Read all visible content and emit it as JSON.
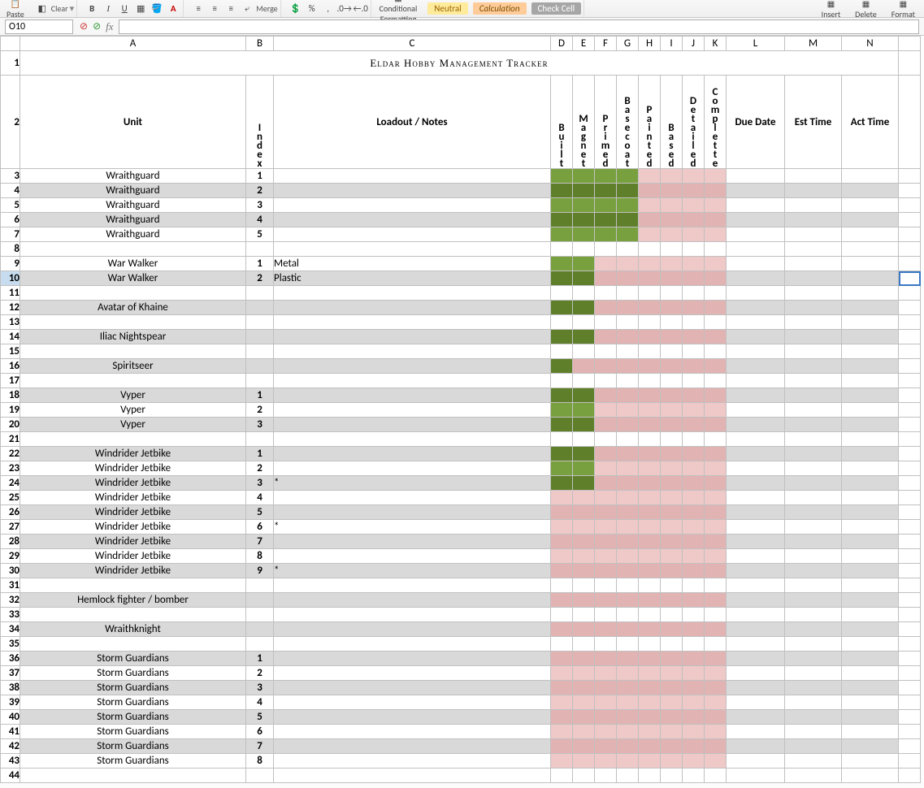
{
  "ribbon": {
    "paste": "Paste",
    "clear": "Clear",
    "merge": "Merge",
    "cond_fmt_top": "Conditional",
    "cond_fmt_bot": "Formatting",
    "style_neutral": "Neutral",
    "style_calc": "Calculation",
    "style_check": "Check Cell",
    "insert": "Insert",
    "delete": "Delete",
    "format": "Format"
  },
  "namebox": "O10",
  "columns": [
    "A",
    "B",
    "C",
    "D",
    "E",
    "F",
    "G",
    "H",
    "I",
    "J",
    "K",
    "L",
    "M",
    "N"
  ],
  "title": "Eldar Hobby Management Tracker",
  "headers": {
    "unit": "Unit",
    "index": "Index",
    "loadout": "Loadout / Notes",
    "status": [
      "Built",
      "Magnet",
      "Primed",
      "Basecoat",
      "Painted",
      "Based",
      "Detailed",
      "Complette"
    ],
    "due": "Due Date",
    "est": "Est Time",
    "act": "Act Time"
  },
  "colors": {
    "title_bg": "#d2dab5",
    "header_bg": "#b8d6df",
    "grey": "#d9d9d9",
    "green_dark": "#5f7f2a",
    "green_light": "#78a03e",
    "pink_dark": "#e2b3b3",
    "pink_light": "#efc8c8"
  },
  "rows": [
    {
      "r": 3,
      "unit": "Wraithguard",
      "idx": "1",
      "note": "",
      "status": [
        1,
        1,
        1,
        1,
        0,
        0,
        0,
        0
      ],
      "shade": false
    },
    {
      "r": 4,
      "unit": "Wraithguard",
      "idx": "2",
      "note": "",
      "status": [
        1,
        1,
        1,
        1,
        0,
        0,
        0,
        0
      ],
      "shade": true
    },
    {
      "r": 5,
      "unit": "Wraithguard",
      "idx": "3",
      "note": "",
      "status": [
        1,
        1,
        1,
        1,
        0,
        0,
        0,
        0
      ],
      "shade": false
    },
    {
      "r": 6,
      "unit": "Wraithguard",
      "idx": "4",
      "note": "",
      "status": [
        1,
        1,
        1,
        1,
        0,
        0,
        0,
        0
      ],
      "shade": true
    },
    {
      "r": 7,
      "unit": "Wraithguard",
      "idx": "5",
      "note": "",
      "status": [
        1,
        1,
        1,
        1,
        0,
        0,
        0,
        0
      ],
      "shade": false
    },
    {
      "r": 8,
      "blank": true
    },
    {
      "r": 9,
      "unit": "War Walker",
      "idx": "1",
      "note": "Metal",
      "status": [
        1,
        1,
        0,
        0,
        0,
        0,
        0,
        0
      ],
      "shade": false
    },
    {
      "r": 10,
      "unit": "War Walker",
      "idx": "2",
      "note": "Plastic",
      "status": [
        1,
        1,
        0,
        0,
        0,
        0,
        0,
        0
      ],
      "shade": true,
      "sel": true
    },
    {
      "r": 11,
      "blank": true
    },
    {
      "r": 12,
      "unit": "Avatar of Khaine",
      "idx": "",
      "note": "",
      "status": [
        1,
        1,
        0,
        0,
        0,
        0,
        0,
        0
      ],
      "shade": true
    },
    {
      "r": 13,
      "blank": true
    },
    {
      "r": 14,
      "unit": "Iliac Nightspear",
      "idx": "",
      "note": "",
      "status": [
        1,
        1,
        0,
        0,
        0,
        0,
        0,
        0
      ],
      "shade": true
    },
    {
      "r": 15,
      "blank": true
    },
    {
      "r": 16,
      "unit": "Spiritseer",
      "idx": "",
      "note": "",
      "status": [
        1,
        0,
        0,
        0,
        0,
        0,
        0,
        0
      ],
      "shade": true
    },
    {
      "r": 17,
      "blank": true
    },
    {
      "r": 18,
      "unit": "Vyper",
      "idx": "1",
      "note": "",
      "status": [
        1,
        1,
        0,
        0,
        0,
        0,
        0,
        0
      ],
      "shade": true
    },
    {
      "r": 19,
      "unit": "Vyper",
      "idx": "2",
      "note": "",
      "status": [
        1,
        1,
        0,
        0,
        0,
        0,
        0,
        0
      ],
      "shade": false
    },
    {
      "r": 20,
      "unit": "Vyper",
      "idx": "3",
      "note": "",
      "status": [
        1,
        1,
        0,
        0,
        0,
        0,
        0,
        0
      ],
      "shade": true
    },
    {
      "r": 21,
      "blank": true
    },
    {
      "r": 22,
      "unit": "Windrider Jetbike",
      "idx": "1",
      "note": "",
      "status": [
        1,
        1,
        0,
        0,
        0,
        0,
        0,
        0
      ],
      "shade": true
    },
    {
      "r": 23,
      "unit": "Windrider Jetbike",
      "idx": "2",
      "note": "",
      "status": [
        1,
        1,
        0,
        0,
        0,
        0,
        0,
        0
      ],
      "shade": false
    },
    {
      "r": 24,
      "unit": "Windrider Jetbike",
      "idx": "3",
      "note": "*",
      "status": [
        1,
        1,
        0,
        0,
        0,
        0,
        0,
        0
      ],
      "shade": true
    },
    {
      "r": 25,
      "unit": "Windrider Jetbike",
      "idx": "4",
      "note": "",
      "status": [
        0,
        0,
        0,
        0,
        0,
        0,
        0,
        0
      ],
      "shade": false
    },
    {
      "r": 26,
      "unit": "Windrider Jetbike",
      "idx": "5",
      "note": "",
      "status": [
        0,
        0,
        0,
        0,
        0,
        0,
        0,
        0
      ],
      "shade": true
    },
    {
      "r": 27,
      "unit": "Windrider Jetbike",
      "idx": "6",
      "note": "*",
      "status": [
        0,
        0,
        0,
        0,
        0,
        0,
        0,
        0
      ],
      "shade": false
    },
    {
      "r": 28,
      "unit": "Windrider Jetbike",
      "idx": "7",
      "note": "",
      "status": [
        0,
        0,
        0,
        0,
        0,
        0,
        0,
        0
      ],
      "shade": true
    },
    {
      "r": 29,
      "unit": "Windrider Jetbike",
      "idx": "8",
      "note": "",
      "status": [
        0,
        0,
        0,
        0,
        0,
        0,
        0,
        0
      ],
      "shade": false
    },
    {
      "r": 30,
      "unit": "Windrider Jetbike",
      "idx": "9",
      "note": "*",
      "status": [
        0,
        0,
        0,
        0,
        0,
        0,
        0,
        0
      ],
      "shade": true
    },
    {
      "r": 31,
      "blank": true
    },
    {
      "r": 32,
      "unit": "Hemlock fighter / bomber",
      "idx": "",
      "note": "",
      "status": [
        0,
        0,
        0,
        0,
        0,
        0,
        0,
        0
      ],
      "shade": true
    },
    {
      "r": 33,
      "blank": true
    },
    {
      "r": 34,
      "unit": "Wraithknight",
      "idx": "",
      "note": "",
      "status": [
        0,
        0,
        0,
        0,
        0,
        0,
        0,
        0
      ],
      "shade": true
    },
    {
      "r": 35,
      "blank": true
    },
    {
      "r": 36,
      "unit": "Storm Guardians",
      "idx": "1",
      "note": "",
      "status": [
        0,
        0,
        0,
        0,
        0,
        0,
        0,
        0
      ],
      "shade": true
    },
    {
      "r": 37,
      "unit": "Storm Guardians",
      "idx": "2",
      "note": "",
      "status": [
        0,
        0,
        0,
        0,
        0,
        0,
        0,
        0
      ],
      "shade": false
    },
    {
      "r": 38,
      "unit": "Storm Guardians",
      "idx": "3",
      "note": "",
      "status": [
        0,
        0,
        0,
        0,
        0,
        0,
        0,
        0
      ],
      "shade": true
    },
    {
      "r": 39,
      "unit": "Storm Guardians",
      "idx": "4",
      "note": "",
      "status": [
        0,
        0,
        0,
        0,
        0,
        0,
        0,
        0
      ],
      "shade": false
    },
    {
      "r": 40,
      "unit": "Storm Guardians",
      "idx": "5",
      "note": "",
      "status": [
        0,
        0,
        0,
        0,
        0,
        0,
        0,
        0
      ],
      "shade": true
    },
    {
      "r": 41,
      "unit": "Storm Guardians",
      "idx": "6",
      "note": "",
      "status": [
        0,
        0,
        0,
        0,
        0,
        0,
        0,
        0
      ],
      "shade": false
    },
    {
      "r": 42,
      "unit": "Storm Guardians",
      "idx": "7",
      "note": "",
      "status": [
        0,
        0,
        0,
        0,
        0,
        0,
        0,
        0
      ],
      "shade": true
    },
    {
      "r": 43,
      "unit": "Storm Guardians",
      "idx": "8",
      "note": "",
      "status": [
        0,
        0,
        0,
        0,
        0,
        0,
        0,
        0
      ],
      "shade": false
    },
    {
      "r": 44,
      "blank": true
    }
  ]
}
